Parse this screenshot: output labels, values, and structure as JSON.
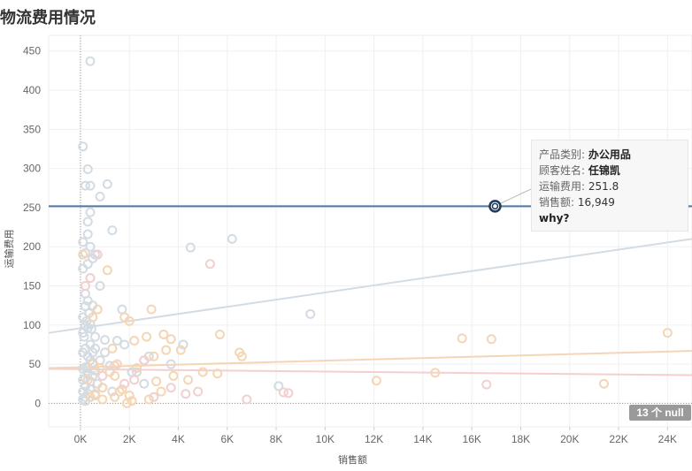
{
  "title": "物流费用情况",
  "chart_data": {
    "type": "scatter",
    "title": "物流费用情况",
    "xlabel": "销售额",
    "ylabel": "运输费用",
    "xlim": [
      -1300,
      25000
    ],
    "ylim": [
      -30,
      470
    ],
    "x_ticks": [
      0,
      2000,
      4000,
      6000,
      8000,
      10000,
      12000,
      14000,
      16000,
      18000,
      20000,
      22000,
      24000
    ],
    "x_tick_labels": [
      "0K",
      "2K",
      "4K",
      "6K",
      "8K",
      "10K",
      "12K",
      "14K",
      "16K",
      "18K",
      "20K",
      "22K",
      "24K"
    ],
    "y_ticks": [
      0,
      50,
      100,
      150,
      200,
      250,
      300,
      350,
      400,
      450
    ],
    "y_tick_labels": [
      "0",
      "50",
      "100",
      "150",
      "200",
      "250",
      "300",
      "350",
      "400",
      "450"
    ],
    "grid": true,
    "reference_line": {
      "y": 251.8,
      "color": "#4e79a7"
    },
    "series": [
      {
        "color": "#d3dbe3",
        "trend": [
          [
            -1300,
            90
          ],
          [
            25000,
            210
          ]
        ],
        "x": [
          400,
          100,
          300,
          200,
          400,
          1100,
          800,
          400,
          300,
          1300,
          300,
          100,
          4500,
          6200,
          400,
          200,
          600,
          500,
          300,
          100,
          800,
          400,
          200,
          300,
          200,
          9400,
          100,
          500,
          400,
          200,
          300,
          100,
          1000,
          400,
          600,
          1500,
          1800,
          4200,
          1700,
          200,
          100,
          2800,
          300,
          400,
          500,
          3700,
          1200,
          200,
          100,
          600,
          8100,
          2300,
          300,
          500,
          200,
          100,
          400,
          700,
          900,
          1300,
          300,
          600,
          200,
          100,
          400,
          200,
          300,
          500,
          150,
          250,
          350,
          450,
          1000,
          2100,
          2600,
          600,
          800,
          100,
          200
        ],
        "y": [
          437,
          328,
          299,
          278,
          278,
          280,
          264,
          244,
          232,
          221,
          216,
          206,
          199,
          210,
          200,
          192,
          190,
          185,
          178,
          172,
          150,
          160,
          140,
          131,
          124,
          114,
          110,
          125,
          101,
          99,
          96,
          90,
          81,
          75,
          85,
          80,
          75,
          75,
          120,
          70,
          65,
          60,
          60,
          55,
          52,
          50,
          48,
          46,
          44,
          42,
          22,
          40,
          38,
          35,
          32,
          30,
          28,
          25,
          20,
          15,
          12,
          10,
          8,
          5,
          18,
          22,
          45,
          65,
          85,
          105,
          115,
          95,
          65,
          40,
          25,
          70,
          55,
          15,
          3
        ]
      },
      {
        "color": "#f5d6b4",
        "trend": [
          [
            -1300,
            45
          ],
          [
            25000,
            67
          ]
        ],
        "x": [
          100,
          1100,
          500,
          700,
          1800,
          2900,
          2000,
          5700,
          3400,
          3700,
          2200,
          2700,
          1300,
          3500,
          4100,
          3000,
          2600,
          1500,
          500,
          800,
          1200,
          2300,
          1400,
          3800,
          4400,
          5000,
          5600,
          6500,
          6600,
          15600,
          16800,
          14500,
          12100,
          21400,
          24000,
          300,
          900,
          1600,
          2000,
          2800,
          900,
          1700,
          3100,
          3300,
          600,
          400,
          1400,
          2100,
          1900
        ],
        "y": [
          190,
          170,
          110,
          120,
          110,
          120,
          105,
          88,
          88,
          82,
          80,
          85,
          70,
          68,
          68,
          60,
          55,
          50,
          50,
          45,
          40,
          45,
          35,
          35,
          30,
          40,
          38,
          65,
          60,
          83,
          82,
          39,
          29,
          25,
          90,
          30,
          20,
          15,
          10,
          5,
          5,
          18,
          28,
          15,
          12,
          8,
          8,
          3,
          0
        ]
      },
      {
        "color": "#f3cfcf",
        "trend": [
          [
            -1300,
            44
          ],
          [
            25000,
            36
          ]
        ],
        "x": [
          400,
          200,
          700,
          5300,
          4800,
          6800,
          8300,
          8500,
          16600,
          1400,
          2200,
          3700,
          4300,
          2600,
          900,
          1800,
          3000
        ],
        "y": [
          160,
          150,
          190,
          178,
          15,
          5,
          14,
          13,
          24,
          48,
          30,
          20,
          12,
          55,
          35,
          25,
          8
        ]
      }
    ],
    "highlight": {
      "x": 16949,
      "y": 251.8
    }
  },
  "tooltip": {
    "category_label": "产品类别:",
    "category_value": "办公用品",
    "customer_label": "顾客姓名:",
    "customer_value": "任锦凯",
    "shipping_label": "运输费用:",
    "shipping_value": "251.8",
    "sales_label": "销售额:",
    "sales_value": "16,949",
    "link_text": "why?"
  },
  "null_badge": "13 个 null"
}
